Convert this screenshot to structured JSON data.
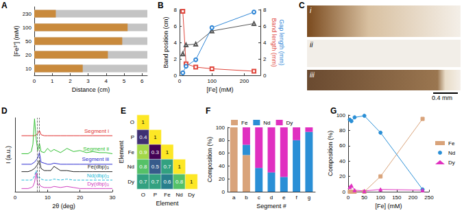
{
  "chart_data": [
    {
      "panel": "A",
      "type": "bar",
      "orientation": "horizontal",
      "xlabel": "Distance (cm)",
      "ylabel": "[Fe³⁺] (mM)",
      "categories": [
        "10",
        "20",
        "50",
        "100",
        "230"
      ],
      "values": [
        2.7,
        4.1,
        4.9,
        5.2,
        1.2
      ],
      "color": "#c98a3c",
      "xlim": [
        0,
        6.3
      ],
      "xticks": [
        0,
        1,
        2,
        3,
        4,
        5,
        6
      ]
    },
    {
      "panel": "B",
      "type": "line",
      "xlabel": "[Fe] (mM)",
      "ylabel": "Band position (cm)",
      "y2label": [
        "Band length (mm)",
        "Gap length (mm)"
      ],
      "x": [
        10,
        20,
        50,
        100,
        230
      ],
      "xlim": [
        0,
        250
      ],
      "xticks": [
        0,
        100,
        200
      ],
      "ylim": [
        0,
        8
      ],
      "yticks": [
        0,
        2,
        4,
        6,
        8
      ],
      "y2lim": [
        0,
        8
      ],
      "y2ticks": [
        0,
        2,
        4,
        6,
        8
      ],
      "series": [
        {
          "color": "#555555",
          "marker": "triangle_open",
          "values": [
            2.6,
            3.7,
            3.8,
            5.4,
            6.3
          ]
        },
        {
          "axis": "y2",
          "color": "#e0463c",
          "marker": "square_open",
          "values": [
            7.8,
            1.4,
            1.0,
            0.8,
            0.5
          ]
        },
        {
          "axis": "y2",
          "color": "#2f86d6",
          "marker": "circle_open",
          "values": [
            0.3,
            1.1,
            1.9,
            5.8,
            7.7
          ]
        }
      ]
    },
    {
      "panel": "C",
      "type": "image",
      "labels": [
        "i",
        "ii",
        "iii"
      ],
      "scale_bar": "0.4 mm"
    },
    {
      "panel": "D",
      "type": "line",
      "xlabel": "2θ (deg)",
      "ylabel": "I (a.u.)",
      "tick_labels": "x",
      "xlim": [
        0,
        30
      ],
      "xticks": [
        0,
        10,
        20,
        30
      ],
      "ylim": [
        0,
        7
      ],
      "vlines": [
        6.8,
        7.5
      ],
      "x": [
        2,
        4,
        5,
        5.5,
        6,
        6.5,
        7,
        7.5,
        8,
        9,
        10,
        11,
        12,
        14,
        16,
        18,
        20,
        22,
        24,
        26,
        28,
        30
      ],
      "series": [
        {
          "name": "Segment i",
          "color": "#e03030",
          "values": [
            5.3,
            5.3,
            5.3,
            5.3,
            5.3,
            5.4,
            5.5,
            5.8,
            5.4,
            5.3,
            5.3,
            5.3,
            5.3,
            5.3,
            5.3,
            5.3,
            5.3,
            5.3,
            5.3,
            5.3,
            5.3,
            5.3
          ]
        },
        {
          "name": "Segment ii",
          "color": "#2fbf2f",
          "values": [
            3.6,
            3.6,
            3.8,
            4.5,
            6.9,
            5.0,
            3.9,
            4.6,
            3.8,
            3.7,
            4.1,
            3.8,
            4.0,
            3.7,
            4.1,
            3.8,
            3.9,
            3.7,
            3.8,
            3.7,
            3.7,
            3.6
          ]
        },
        {
          "name": "Segment iii",
          "color": "#2a2acf",
          "values": [
            2.6,
            2.6,
            2.6,
            2.7,
            2.8,
            3.0,
            3.2,
            3.7,
            2.8,
            2.7,
            2.6,
            2.6,
            2.7,
            2.6,
            2.6,
            2.6,
            2.6,
            2.6,
            2.6,
            2.6,
            2.6,
            2.6
          ]
        },
        {
          "name": "Fe(dbp)₃",
          "color": "#222222",
          "values": [
            1.9,
            1.9,
            2.0,
            2.1,
            2.2,
            2.4,
            2.6,
            3.0,
            2.2,
            2.0,
            2.0,
            2.0,
            2.4,
            2.0,
            2.0,
            1.9,
            1.9,
            1.9,
            1.9,
            1.9,
            1.9,
            1.9
          ]
        },
        {
          "name": "Nd(dbp)₃",
          "color": "#20b8d8",
          "line_style": "dashed",
          "values": [
            1.1,
            1.1,
            1.1,
            1.2,
            1.5,
            2.0,
            1.3,
            1.4,
            1.2,
            1.1,
            1.1,
            1.1,
            1.2,
            1.1,
            1.2,
            1.1,
            1.1,
            1.1,
            1.1,
            1.1,
            1.1,
            1.1
          ]
        },
        {
          "name": "Dy(dbp)₃",
          "color": "#d040c0",
          "values": [
            0.3,
            0.3,
            0.4,
            0.5,
            0.9,
            1.8,
            0.6,
            0.7,
            0.5,
            0.4,
            0.4,
            0.4,
            0.5,
            0.4,
            0.5,
            0.4,
            0.3,
            0.3,
            0.3,
            0.3,
            0.3,
            0.3
          ]
        }
      ]
    },
    {
      "panel": "E",
      "type": "heatmap",
      "xlabel": "Element",
      "ylabel": "Element",
      "categories": [
        "O",
        "P",
        "Fe",
        "Nd",
        "Dy"
      ],
      "cells": [
        [
          1,
          null,
          null,
          null,
          null
        ],
        [
          0.4,
          1,
          null,
          null,
          null
        ],
        [
          0.9,
          0.3,
          1,
          null,
          null
        ],
        [
          0.8,
          0.5,
          0.7,
          1,
          null
        ],
        [
          0.7,
          0.7,
          0.6,
          0.8,
          1
        ]
      ],
      "color_range": [
        0.3,
        1
      ],
      "data_labels": true
    },
    {
      "panel": "F",
      "type": "bar",
      "stacked": true,
      "xlabel": "Segment #",
      "ylabel": "Composition (%)",
      "categories": [
        "a",
        "b",
        "c",
        "d",
        "e",
        "f",
        "g"
      ],
      "ylim": [
        0,
        100
      ],
      "yticks": [
        0,
        20,
        40,
        60,
        80,
        100
      ],
      "legend": "top",
      "series": [
        {
          "name": "Fe",
          "color": "#d9a37a",
          "values": [
            100,
            57,
            0,
            0,
            0,
            0,
            0
          ]
        },
        {
          "name": "Nd",
          "color": "#2a8fd6",
          "values": [
            0,
            16,
            37,
            30,
            23,
            80,
            93
          ]
        },
        {
          "name": "Dy",
          "color": "#e030c0",
          "values": [
            0,
            27,
            63,
            70,
            77,
            20,
            7
          ]
        }
      ]
    },
    {
      "panel": "G",
      "type": "line",
      "xlabel": "[Fe] (mM)",
      "ylabel": "Composition (%)",
      "x": [
        5,
        10,
        20,
        50,
        100,
        230
      ],
      "xlim": [
        0,
        250
      ],
      "xticks": [
        0,
        50,
        100,
        150,
        200,
        250
      ],
      "ylim": [
        0,
        100
      ],
      "yticks": [
        0,
        20,
        40,
        60,
        80,
        100
      ],
      "legend": "right",
      "series": [
        {
          "name": "Fe",
          "color": "#d9a37a",
          "marker": "square",
          "values": [
            0,
            0,
            0,
            0,
            20,
            95
          ]
        },
        {
          "name": "Nd",
          "color": "#2a8fd6",
          "marker": "circle",
          "values": [
            94,
            92,
            97,
            99,
            77,
            3
          ]
        },
        {
          "name": "Dy",
          "color": "#e030c0",
          "marker": "triangle",
          "values": [
            6,
            8,
            2,
            1,
            3,
            2
          ]
        }
      ]
    }
  ]
}
